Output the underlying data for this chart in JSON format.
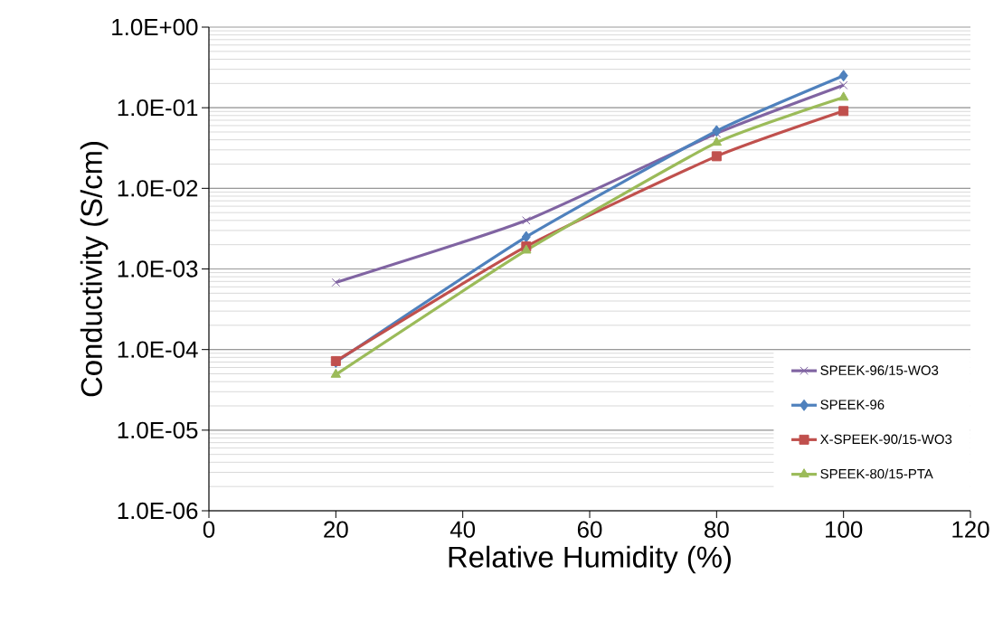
{
  "chart_data": {
    "type": "line",
    "xlabel": "Relative Humidity (%)",
    "ylabel": "Conductivity (S/cm)",
    "x": [
      20,
      50,
      80,
      100
    ],
    "series": [
      {
        "name": "SPEEK-96/15-WO3",
        "color": "#8064a2",
        "marker": "cross",
        "values": [
          0.00068,
          0.004,
          0.048,
          0.19
        ]
      },
      {
        "name": "SPEEK-96",
        "color": "#4f81bd",
        "marker": "diamond",
        "values": [
          7e-05,
          0.0025,
          0.0515,
          0.25
        ]
      },
      {
        "name": "X-SPEEK-90/15-WO3",
        "color": "#c0504d",
        "marker": "square",
        "values": [
          7.2e-05,
          0.0019,
          0.025,
          0.091
        ]
      },
      {
        "name": "SPEEK-80/15-PTA",
        "color": "#9bbb59",
        "marker": "triangle",
        "values": [
          4.9e-05,
          0.0017,
          0.037,
          0.134
        ]
      }
    ],
    "xlim": [
      0,
      120
    ],
    "xticks": [
      0,
      20,
      40,
      60,
      80,
      100,
      120
    ],
    "ylim": [
      1e-06,
      1
    ],
    "log": "y",
    "yticks": [
      {
        "value": 1e-06,
        "label": "1.0E-06"
      },
      {
        "value": 1e-05,
        "label": "1.0E-05"
      },
      {
        "value": 0.0001,
        "label": "1.0E-04"
      },
      {
        "value": 0.001,
        "label": "1.0E-03"
      },
      {
        "value": 0.01,
        "label": "1.0E-02"
      },
      {
        "value": 0.1,
        "label": "1.0E-01"
      },
      {
        "value": 1,
        "label": "1.0E+00"
      }
    ],
    "grid": "y",
    "legend": "bottom right"
  }
}
